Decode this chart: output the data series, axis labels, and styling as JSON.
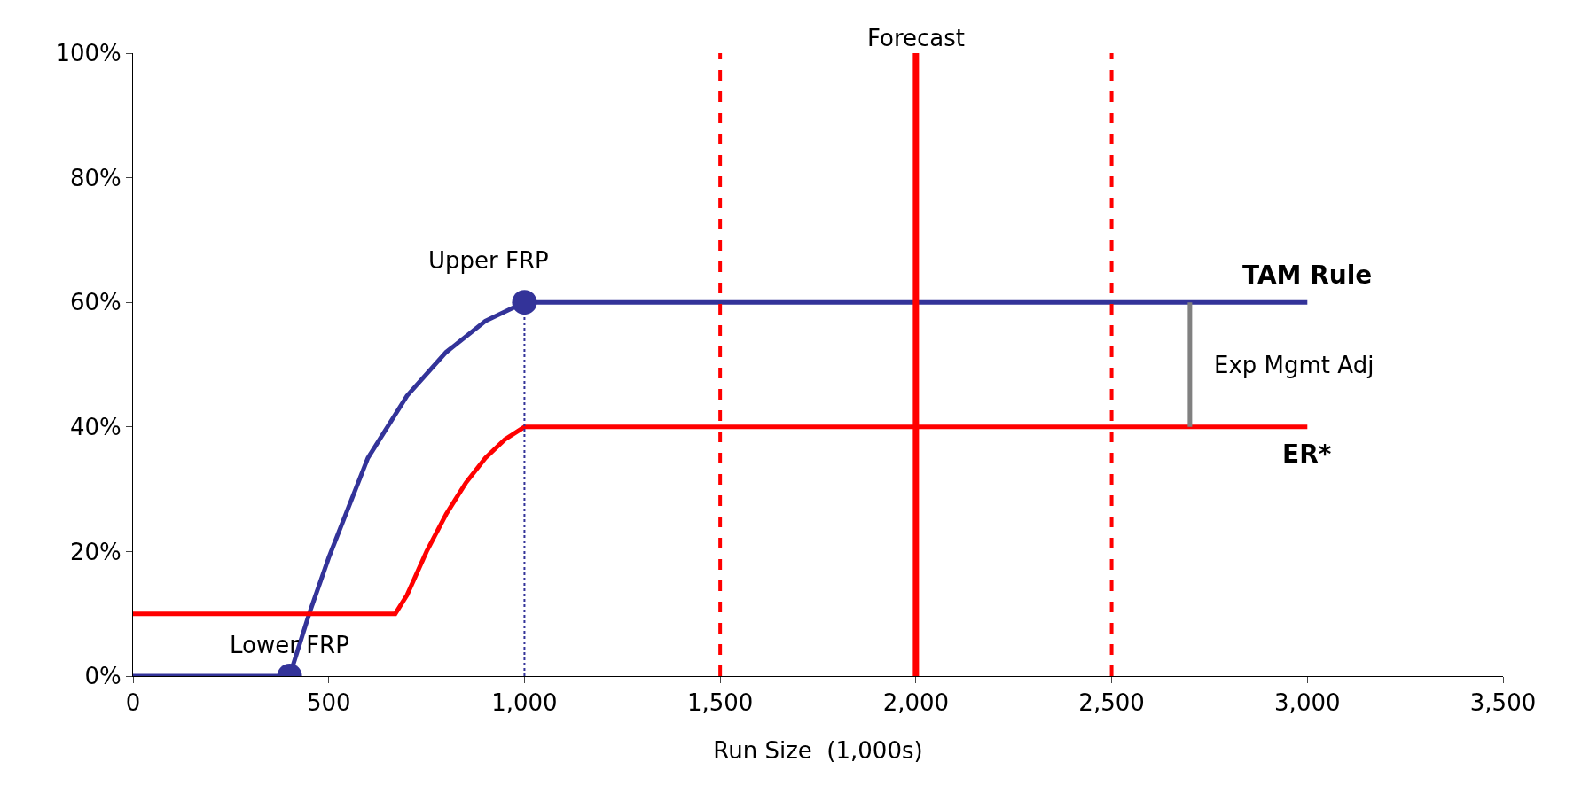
{
  "chart_data": {
    "type": "line",
    "xlabel": "Run Size  (1,000s)",
    "xlim": [
      0,
      3500
    ],
    "ylim": [
      0,
      100
    ],
    "xticks": [
      0,
      500,
      {
        "value": 1000,
        "label": "1,000"
      },
      {
        "value": 1500,
        "label": "1,500"
      },
      {
        "value": 2000,
        "label": "2,000"
      },
      {
        "value": 2500,
        "label": "2,500"
      },
      {
        "value": 3000,
        "label": "3,000"
      },
      {
        "value": 3500,
        "label": "3,500"
      }
    ],
    "yticks": [
      {
        "value": 0,
        "label": "0%"
      },
      {
        "value": 20,
        "label": "20%"
      },
      {
        "value": 40,
        "label": "40%"
      },
      {
        "value": 60,
        "label": "60%"
      },
      {
        "value": 80,
        "label": "80%"
      },
      {
        "value": 100,
        "label": "100%"
      }
    ],
    "grid": false,
    "legend": false,
    "marker": "none",
    "line_style": "solid",
    "series": [
      {
        "name": "TAM Rule",
        "color": "#333399",
        "x": [
          0,
          400,
          450,
          500,
          600,
          700,
          800,
          900,
          1000,
          3000
        ],
        "values": [
          0,
          0,
          10,
          19,
          35,
          45,
          52,
          57,
          60,
          60
        ]
      },
      {
        "name": "ER*",
        "color": "#ff0000",
        "x": [
          0,
          670,
          700,
          750,
          800,
          850,
          900,
          950,
          1000,
          3000
        ],
        "values": [
          10,
          10,
          13,
          20,
          26,
          31,
          35,
          38,
          40,
          40
        ]
      },
      {
        "type": "line",
        "color": "#333399",
        "line_style": "dotted",
        "x": [
          1000,
          1000
        ],
        "values": [
          0,
          60
        ]
      },
      {
        "type": "line",
        "color": "#808080",
        "x": [
          2700,
          2700
        ],
        "values": [
          40,
          60
        ]
      },
      {
        "type": "scatter",
        "color": "#333399",
        "marker": "circle",
        "x": [
          400,
          1000
        ],
        "values": [
          0,
          60
        ]
      }
    ],
    "ref_lines": [
      {
        "axis": "x",
        "value": 1500,
        "color": "#ff0000",
        "line_style": "dashed"
      },
      {
        "axis": "x",
        "value": 2000,
        "label": "Forecast",
        "color": "#ff0000",
        "line_style": "solid"
      },
      {
        "axis": "x",
        "value": 2500,
        "color": "#ff0000",
        "line_style": "dashed"
      }
    ],
    "annotations": [
      {
        "text": "Lower FRP",
        "x": 400,
        "y": 0
      },
      {
        "text": "Upper FRP",
        "x": 1000,
        "y": 60
      },
      {
        "text": "Exp Mgmt Adj",
        "x": 2700,
        "y": 50
      }
    ]
  }
}
